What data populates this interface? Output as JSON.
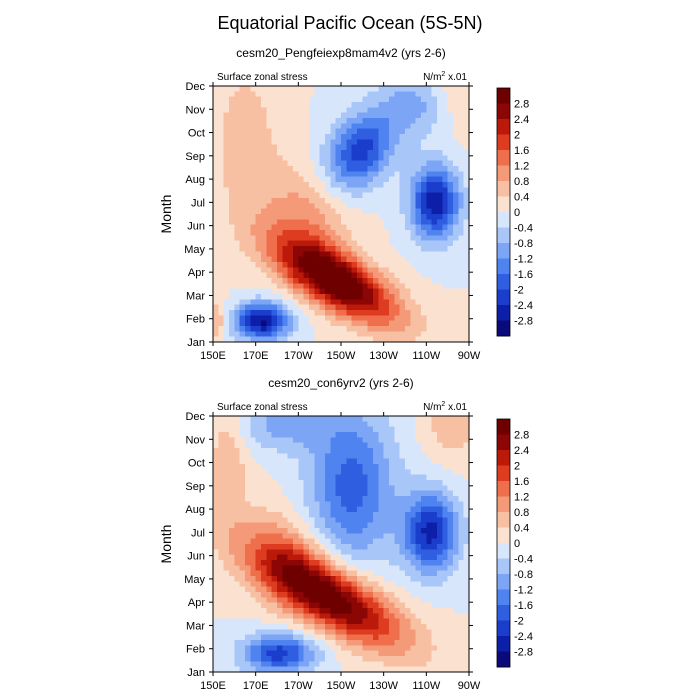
{
  "page_title": "Equatorial Pacific Ocean (5S-5N)",
  "chart_data": [
    {
      "type": "heatmap",
      "title": "cesm20_Pengfeiexp8mam4v2 (yrs 2-6)",
      "left_label": "Surface zonal stress",
      "units_base": "N/m",
      "units_sup": "2",
      "units_suffix": "x.01",
      "xlabel": "",
      "ylabel": "Month",
      "x_ticks": [
        "150E",
        "170E",
        "170W",
        "150W",
        "130W",
        "110W",
        "90W"
      ],
      "y_ticks": [
        "Jan",
        "Feb",
        "Mar",
        "Apr",
        "May",
        "Jun",
        "Jul",
        "Aug",
        "Sep",
        "Oct",
        "Nov",
        "Dec"
      ],
      "xlim": [
        150,
        270
      ],
      "ylim": [
        1,
        12
      ],
      "colorbar_labels": [
        "2.8",
        "2.4",
        "2",
        "1.6",
        "1.2",
        "0.8",
        "0.4",
        "0",
        "-0.4",
        "-0.8",
        "-1.2",
        "-1.6",
        "-2",
        "-2.4",
        "-2.8"
      ],
      "features": [
        {
          "lon": 208,
          "month": 3.6,
          "amp": 3.4,
          "slon": 20,
          "smon": 0.9,
          "tilt": -0.045
        },
        {
          "lon": 254,
          "month": 7.0,
          "amp": -2.7,
          "slon": 8,
          "smon": 1.1,
          "tilt": 0
        },
        {
          "lon": 219,
          "month": 9.2,
          "amp": -2.2,
          "slon": 11,
          "smon": 1.1,
          "tilt": 0.03
        },
        {
          "lon": 173,
          "month": 1.9,
          "amp": -2.9,
          "slon": 9,
          "smon": 0.55,
          "tilt": 0
        },
        {
          "lon": 193,
          "month": 6.2,
          "amp": 1.0,
          "slon": 14,
          "smon": 1.6,
          "tilt": -0.03
        },
        {
          "lon": 165,
          "month": 9.5,
          "amp": 0.7,
          "slon": 10,
          "smon": 2.4,
          "tilt": 0
        },
        {
          "lon": 151,
          "month": 1.9,
          "amp": 0.9,
          "slon": 4,
          "smon": 0.6,
          "tilt": 0
        },
        {
          "lon": 262,
          "month": 12,
          "amp": 0.5,
          "slon": 10,
          "smon": 1.5,
          "tilt": 0
        },
        {
          "lon": 245,
          "month": 11.2,
          "amp": -1.0,
          "slon": 12,
          "smon": 1.0,
          "tilt": 0
        }
      ]
    },
    {
      "type": "heatmap",
      "title": "cesm20_con6yrv2 (yrs 2-6)",
      "left_label": "Surface zonal stress",
      "units_base": "N/m",
      "units_sup": "2",
      "units_suffix": "x.01",
      "xlabel": "",
      "ylabel": "Month",
      "x_ticks": [
        "150E",
        "170E",
        "170W",
        "150W",
        "130W",
        "110W",
        "90W"
      ],
      "y_ticks": [
        "Jan",
        "Feb",
        "Mar",
        "Apr",
        "May",
        "Jun",
        "Jul",
        "Aug",
        "Sep",
        "Oct",
        "Nov",
        "Dec"
      ],
      "xlim": [
        150,
        270
      ],
      "ylim": [
        1,
        12
      ],
      "colorbar_labels": [
        "2.8",
        "2.4",
        "2",
        "1.6",
        "1.2",
        "0.8",
        "0.4",
        "0",
        "-0.4",
        "-0.8",
        "-1.2",
        "-1.6",
        "-2",
        "-2.4",
        "-2.8"
      ],
      "features": [
        {
          "lon": 205,
          "month": 4.2,
          "amp": 3.2,
          "slon": 24,
          "smon": 1.0,
          "tilt": -0.045
        },
        {
          "lon": 252,
          "month": 7.0,
          "amp": -2.5,
          "slon": 9,
          "smon": 1.2,
          "tilt": 0
        },
        {
          "lon": 215,
          "month": 9.0,
          "amp": -1.8,
          "slon": 14,
          "smon": 2.3,
          "tilt": 0
        },
        {
          "lon": 181,
          "month": 1.8,
          "amp": -2.2,
          "slon": 12,
          "smon": 0.6,
          "tilt": 0
        },
        {
          "lon": 183,
          "month": 6.0,
          "amp": 0.9,
          "slon": 14,
          "smon": 1.4,
          "tilt": -0.03
        },
        {
          "lon": 157,
          "month": 10,
          "amp": 0.8,
          "slon": 6,
          "smon": 2.0,
          "tilt": 0
        },
        {
          "lon": 262,
          "month": 11.8,
          "amp": 0.7,
          "slon": 9,
          "smon": 1.2,
          "tilt": 0
        },
        {
          "lon": 182,
          "month": 11.6,
          "amp": -0.9,
          "slon": 16,
          "smon": 0.8,
          "tilt": 0
        }
      ]
    }
  ]
}
